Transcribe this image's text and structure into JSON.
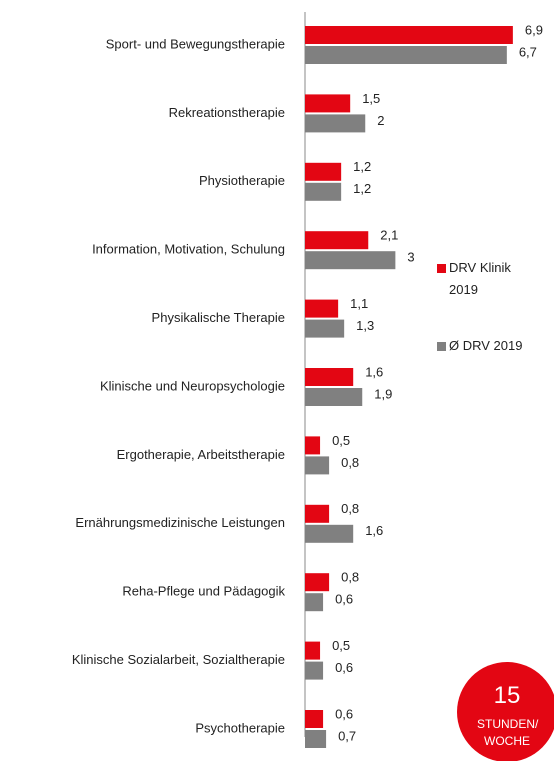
{
  "chart_data": {
    "type": "hbar",
    "categories": [
      "Sport- und Bewegungstherapie",
      "Rekreationstherapie",
      "Physiotherapie",
      "Information, Motivation, Schulung",
      "Physikalische Therapie",
      "Klinische und Neuropsychologie",
      "Ergotherapie, Arbeitstherapie",
      "Ernährungsmedizinische Leistungen",
      "Reha-Pflege und Pädagogik",
      "Klinische Sozialarbeit, Sozialtherapie",
      "Psychotherapie"
    ],
    "series": [
      {
        "name": "DRV Klinik 2019",
        "color": "#e30613",
        "values": [
          6.9,
          1.5,
          1.2,
          2.1,
          1.1,
          1.6,
          0.5,
          0.8,
          0.8,
          0.5,
          0.6
        ],
        "value_labels": [
          "6,9",
          "1,5",
          "1,2",
          "2,1",
          "1,1",
          "1,6",
          "0,5",
          "0,8",
          "0,8",
          "0,5",
          "0,6"
        ]
      },
      {
        "name": "Ø DRV 2019",
        "color": "#808080",
        "values": [
          6.7,
          2,
          1.2,
          3,
          1.3,
          1.9,
          0.8,
          1.6,
          0.6,
          0.6,
          0.7
        ],
        "value_labels": [
          "6,7",
          "2",
          "1,2",
          "3",
          "1,3",
          "1,9",
          "0,8",
          "1,6",
          "0,6",
          "0,6",
          "0,7"
        ]
      }
    ],
    "xlim": [
      0,
      8
    ],
    "legend": "right"
  },
  "badge": {
    "number": "15",
    "label": "STUNDEN/ WOCHE",
    "color": "#e30613"
  }
}
